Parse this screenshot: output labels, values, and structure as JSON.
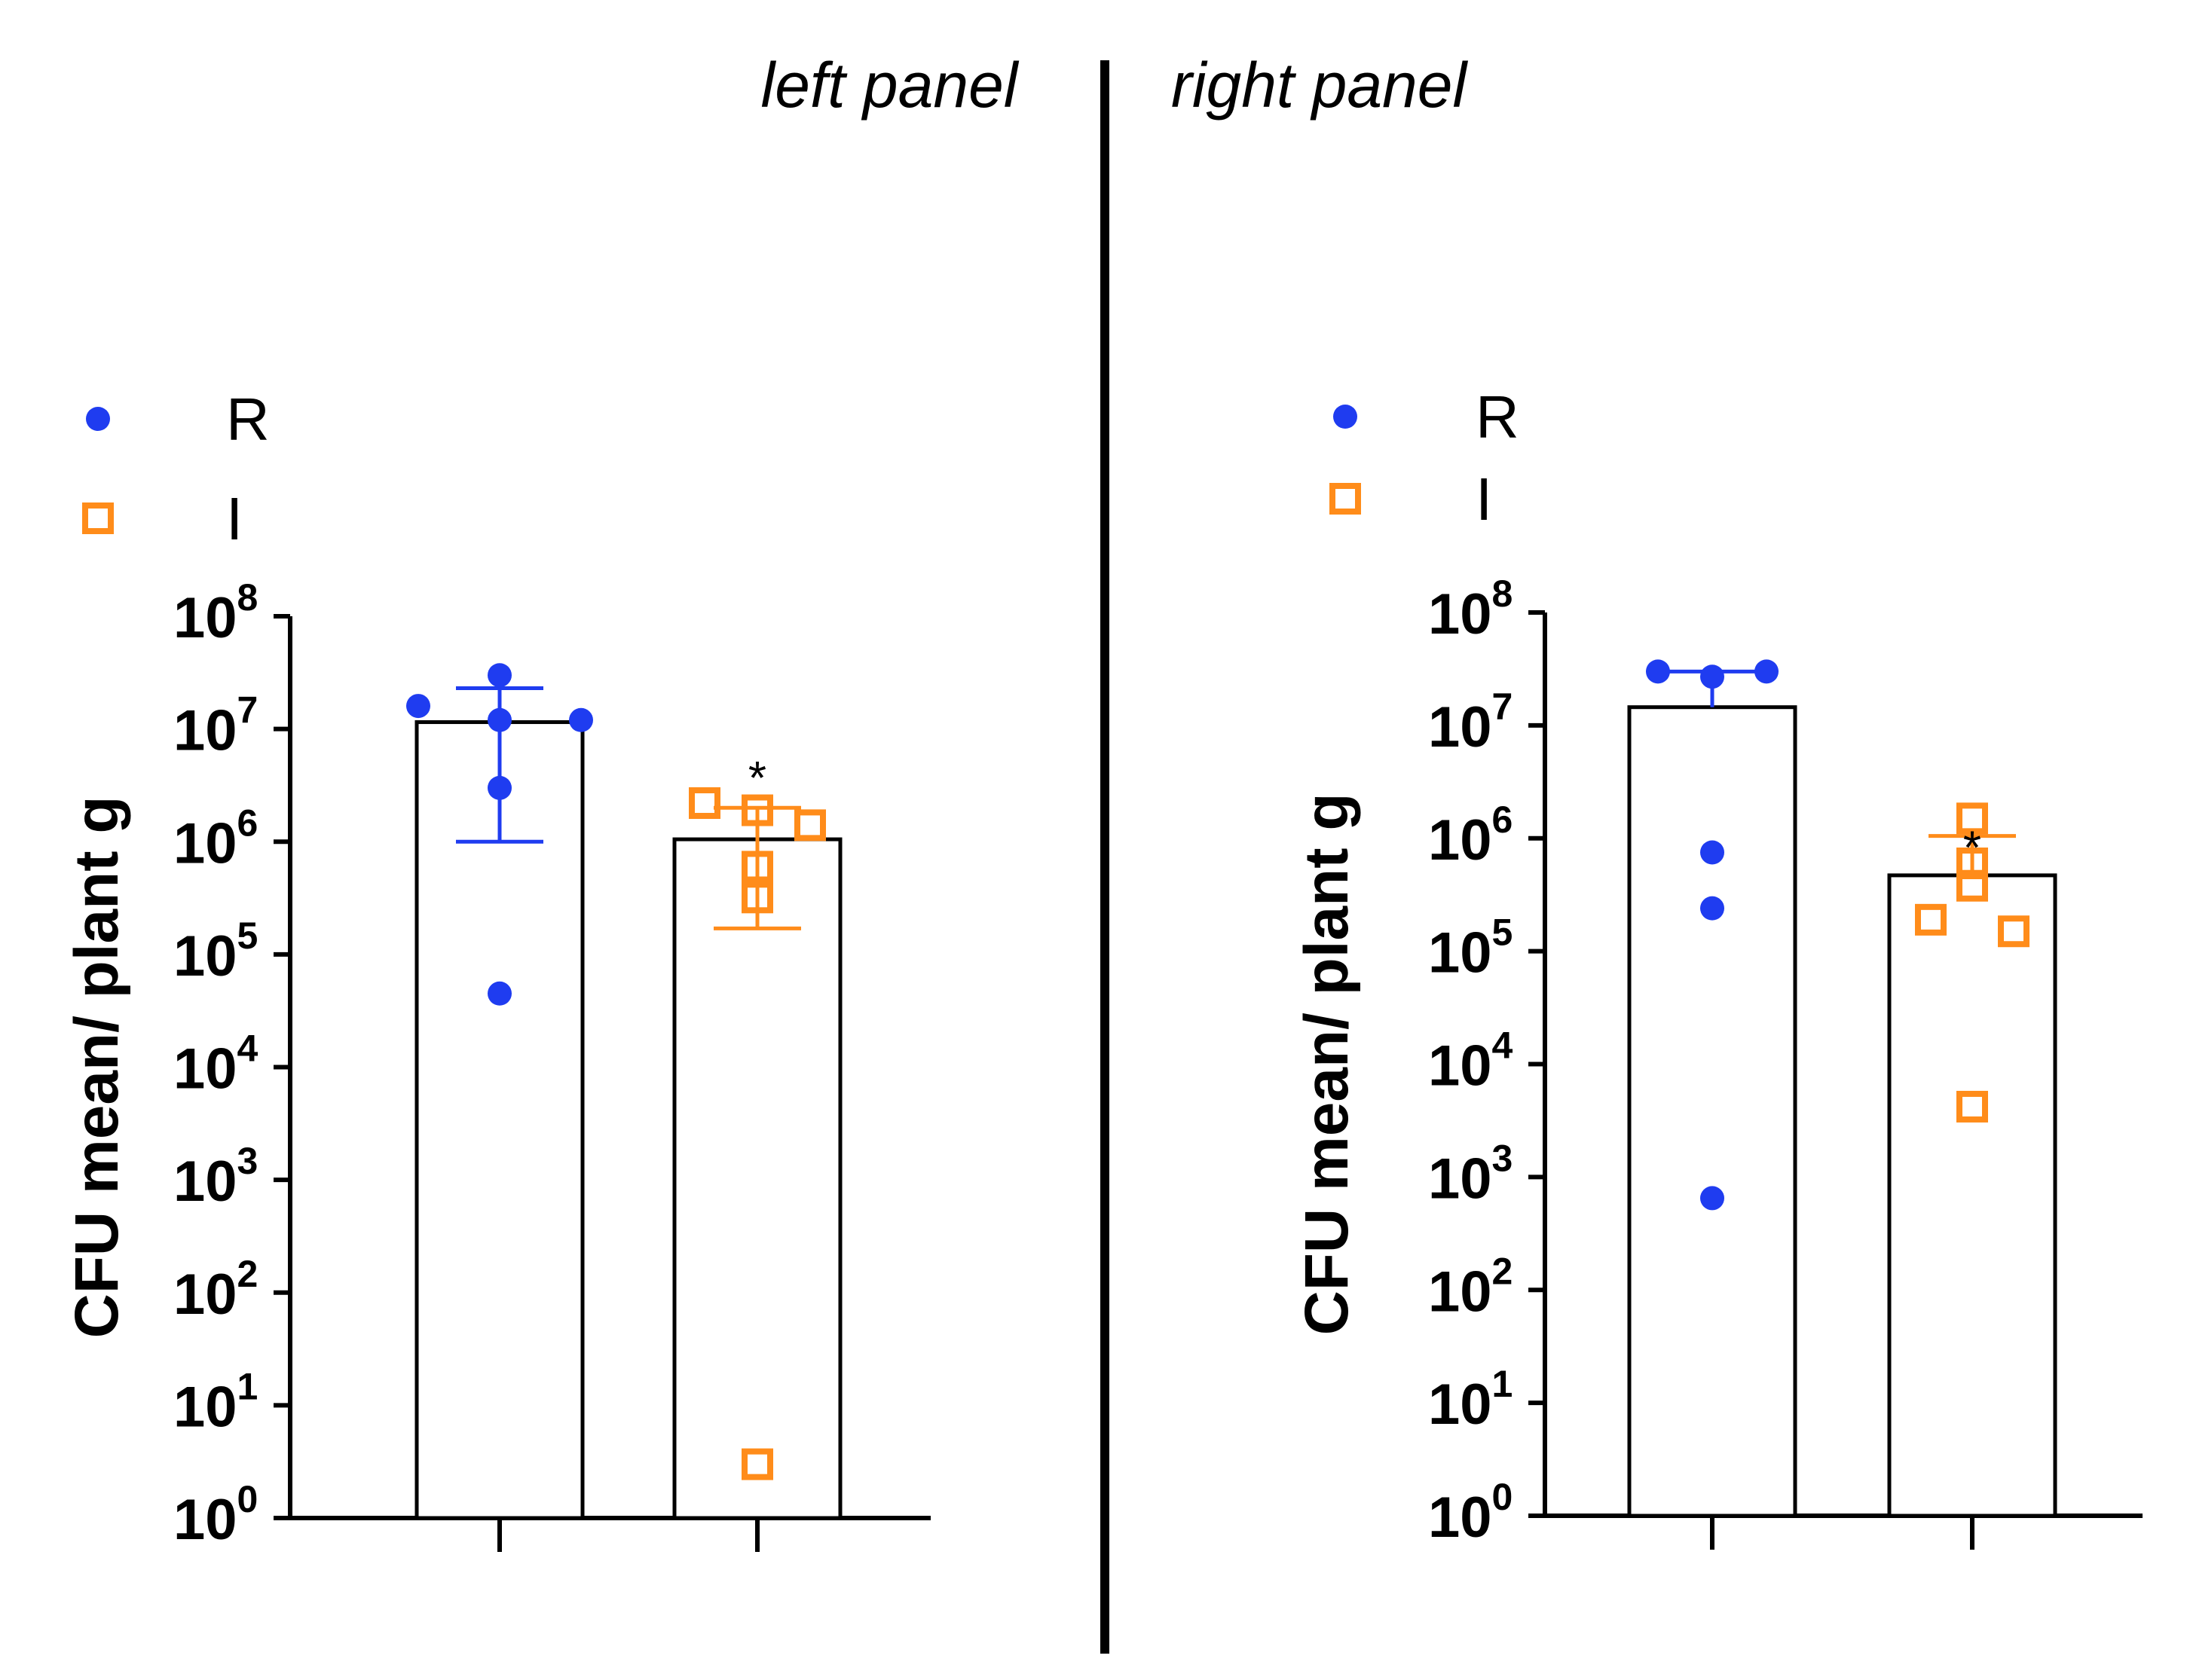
{
  "panel_titles": {
    "left": "left panel",
    "right": "right panel"
  },
  "colors": {
    "R": "#1f3cf0",
    "I": "#ff8c1a",
    "axis": "#000000"
  },
  "chart_data": [
    {
      "type": "bar",
      "panel": "left",
      "title": "left panel",
      "ylabel": "CFU mean/ plant g",
      "yscale": "log10",
      "ylim": [
        1,
        100000000
      ],
      "yticks": [
        {
          "base": "10",
          "exp": "0"
        },
        {
          "base": "10",
          "exp": "1"
        },
        {
          "base": "10",
          "exp": "2"
        },
        {
          "base": "10",
          "exp": "3"
        },
        {
          "base": "10",
          "exp": "4"
        },
        {
          "base": "10",
          "exp": "5"
        },
        {
          "base": "10",
          "exp": "6"
        },
        {
          "base": "10",
          "exp": "7"
        },
        {
          "base": "10",
          "exp": "8"
        }
      ],
      "legend": [
        {
          "label": "R",
          "marker": "circle"
        },
        {
          "label": "I",
          "marker": "open-square"
        }
      ],
      "legend_position": "top-left",
      "groups": [
        {
          "name": "R",
          "mean": 11500000,
          "err_low": 1000000,
          "err_high": 23000000,
          "points": [
            30000000,
            16000000,
            12000000,
            12000000,
            3000000,
            45000
          ]
        },
        {
          "name": "I",
          "mean": 1050000,
          "err_low": 170000,
          "err_high": 2000000,
          "points": [
            2200000,
            1900000,
            1400000,
            600000,
            320000,
            3
          ],
          "annotation": "*"
        }
      ]
    },
    {
      "type": "bar",
      "panel": "right",
      "title": "right panel",
      "ylabel": "CFU mean/ plant g",
      "yscale": "log10",
      "ylim": [
        1,
        100000000
      ],
      "yticks": [
        {
          "base": "10",
          "exp": "0"
        },
        {
          "base": "10",
          "exp": "1"
        },
        {
          "base": "10",
          "exp": "2"
        },
        {
          "base": "10",
          "exp": "3"
        },
        {
          "base": "10",
          "exp": "4"
        },
        {
          "base": "10",
          "exp": "5"
        },
        {
          "base": "10",
          "exp": "6"
        },
        {
          "base": "10",
          "exp": "7"
        },
        {
          "base": "10",
          "exp": "8"
        }
      ],
      "legend": [
        {
          "label": "R",
          "marker": "circle"
        },
        {
          "label": "I",
          "marker": "open-square"
        }
      ],
      "legend_position": "top-left",
      "groups": [
        {
          "name": "R",
          "mean": 14500000,
          "err_low": 14500000,
          "err_high": 30000000,
          "points": [
            30000000,
            30000000,
            27000000,
            750000,
            240000,
            650
          ]
        },
        {
          "name": "I",
          "mean": 470000,
          "err_low": 470000,
          "err_high": 1050000,
          "points": [
            1500000,
            600000,
            380000,
            190000,
            150000,
            4200
          ],
          "annotation": "*"
        }
      ]
    }
  ]
}
